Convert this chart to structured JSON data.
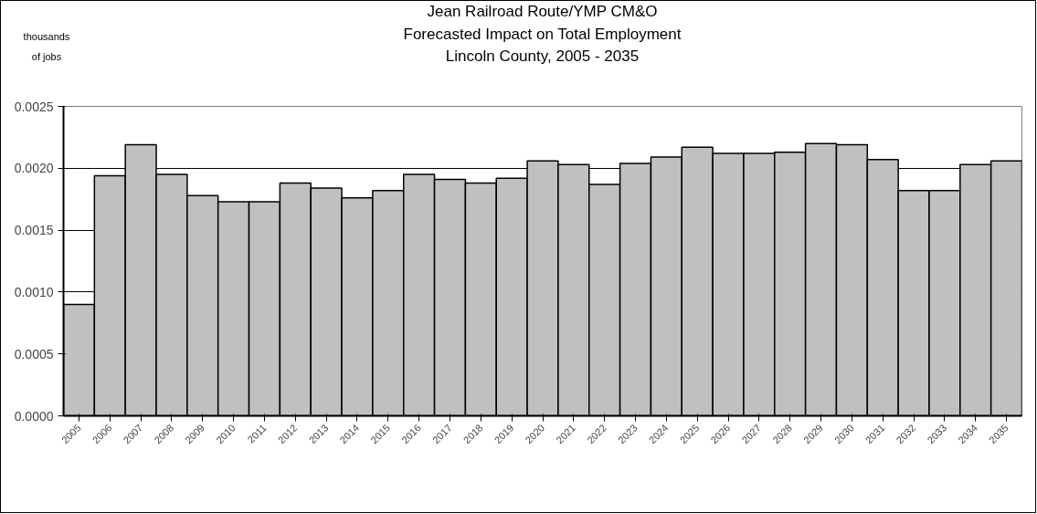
{
  "chart_data": {
    "type": "bar",
    "title": "Jean Railroad Route/YMP CM&O",
    "subtitle": "Forecasted Impact on Total Employment\nLincoln County, 2005 - 2035",
    "ylabel": "thousands\nof jobs",
    "categories": [
      "2005",
      "2006",
      "2007",
      "2008",
      "2009",
      "2010",
      "2011",
      "2012",
      "2013",
      "2014",
      "2015",
      "2016",
      "2017",
      "2018",
      "2019",
      "2020",
      "2021",
      "2022",
      "2023",
      "2024",
      "2025",
      "2026",
      "2027",
      "2028",
      "2029",
      "2030",
      "2031",
      "2032",
      "2033",
      "2034",
      "2035"
    ],
    "values": [
      0.0009,
      0.00194,
      0.00219,
      0.00195,
      0.00178,
      0.00173,
      0.00173,
      0.00188,
      0.00184,
      0.00176,
      0.00182,
      0.00195,
      0.00191,
      0.00188,
      0.00192,
      0.00206,
      0.00203,
      0.00187,
      0.00204,
      0.00209,
      0.00217,
      0.00212,
      0.00212,
      0.00213,
      0.0022,
      0.00219,
      0.00207,
      0.00182,
      0.00182,
      0.00203,
      0.00206
    ],
    "color": "#c0c0c0",
    "ylim": [
      0,
      0.0025
    ],
    "yticks": [
      {
        "value": 0,
        "label": "0.0000"
      },
      {
        "value": 0.0005,
        "label": "0.0005"
      },
      {
        "value": 0.001,
        "label": "0.0010"
      },
      {
        "value": 0.0015,
        "label": "0.0015"
      },
      {
        "value": 0.002,
        "label": "0.0020"
      },
      {
        "value": 0.0025,
        "label": "0.0025"
      }
    ],
    "grid": "y"
  }
}
